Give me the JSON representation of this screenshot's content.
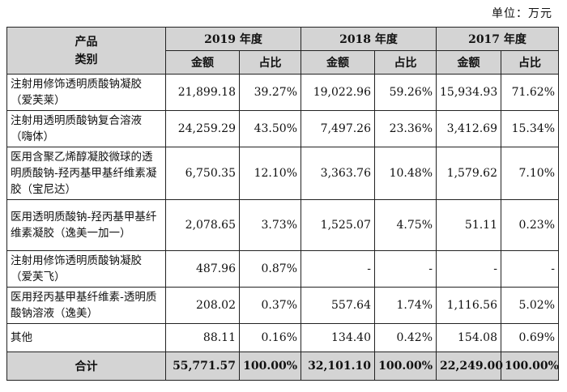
{
  "unit_label": "单位：万元",
  "header": {
    "category": "产品\n类别",
    "years": [
      "2019 年度",
      "2018 年度",
      "2017 年度"
    ],
    "amount": "金额",
    "ratio": "占比"
  },
  "rows": [
    {
      "name": "注射用修饰透明质酸钠凝胶（爱芙莱）",
      "v": [
        "21,899.18",
        "39.27%",
        "19,022.96",
        "59.26%",
        "15,934.93",
        "71.62%"
      ]
    },
    {
      "name": "注射用透明质酸钠复合溶液（嗨体）",
      "v": [
        "24,259.29",
        "43.50%",
        "7,497.26",
        "23.36%",
        "3,412.69",
        "15.34%"
      ]
    },
    {
      "name": "医用含聚乙烯醇凝胶微球的透明质酸钠-羟丙基甲基纤维素凝胶（宝尼达）",
      "v": [
        "6,750.35",
        "12.10%",
        "3,363.76",
        "10.48%",
        "1,579.62",
        "7.10%"
      ]
    },
    {
      "name": "医用透明质酸钠-羟丙基甲基纤维素凝胶（逸美一加一）",
      "v": [
        "2,078.65",
        "3.73%",
        "1,525.07",
        "4.75%",
        "51.11",
        "0.23%"
      ]
    },
    {
      "name": "注射用修饰透明质酸钠凝胶（爱芙飞）",
      "v": [
        "487.96",
        "0.87%",
        "-",
        "-",
        "-",
        "-"
      ]
    },
    {
      "name": "医用羟丙基甲基纤维素-透明质酸钠溶液（逸美）",
      "v": [
        "208.02",
        "0.37%",
        "557.64",
        "1.74%",
        "1,116.56",
        "5.02%"
      ]
    },
    {
      "name": "其他",
      "v": [
        "88.11",
        "0.16%",
        "134.40",
        "0.42%",
        "154.08",
        "0.69%"
      ]
    }
  ],
  "total": {
    "label": "合计",
    "v": [
      "55,771.57",
      "100.00%",
      "32,101.10",
      "100.00%",
      "22,249.00",
      "100.00%"
    ]
  }
}
